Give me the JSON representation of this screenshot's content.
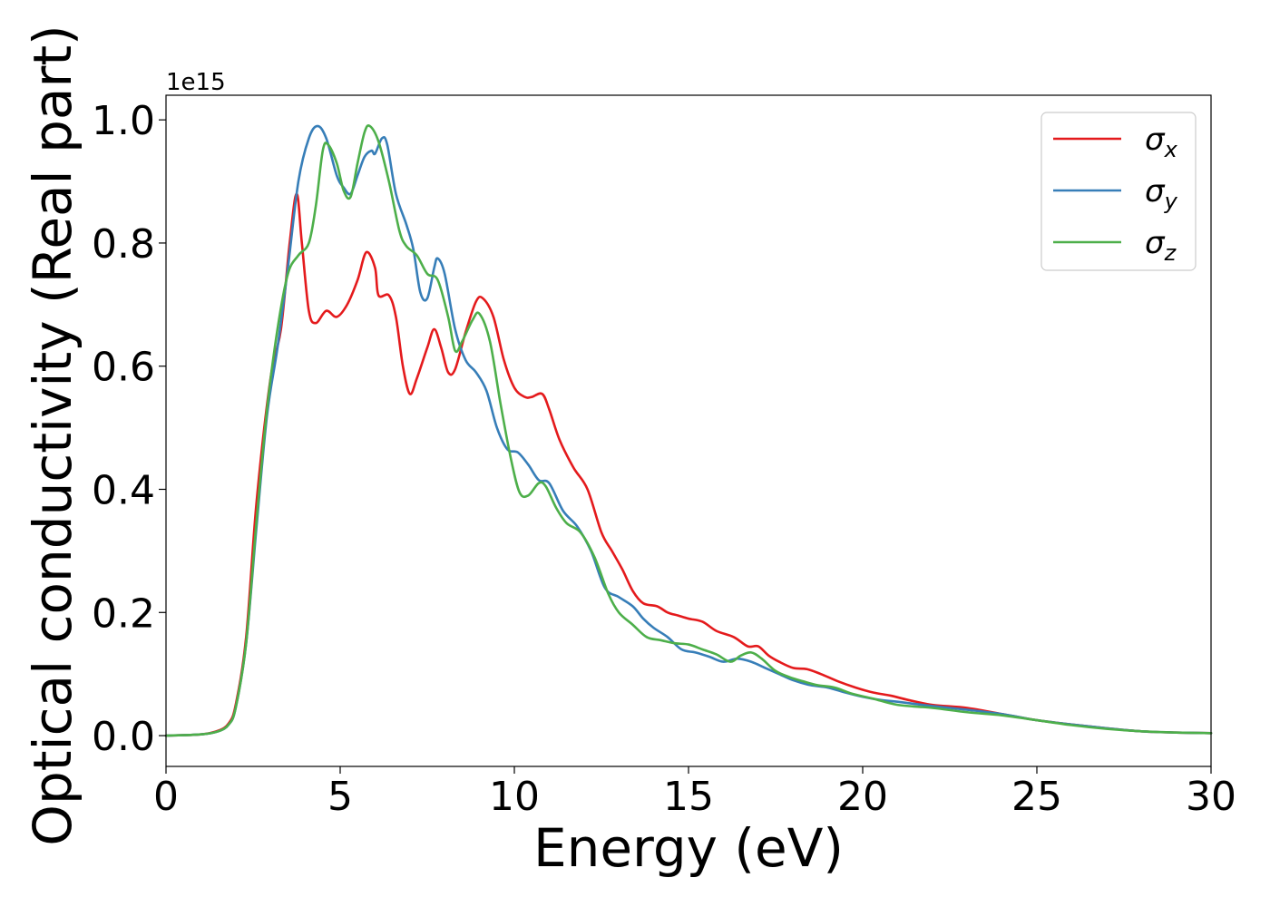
{
  "chart_data": {
    "type": "line",
    "title": "",
    "xlabel": "Energy (eV)",
    "ylabel": "Optical conductivity (Real part)",
    "y_offset_text": "1e15",
    "xlim": [
      0,
      30
    ],
    "ylim": [
      -0.05,
      1.04
    ],
    "xticks": [
      0,
      5,
      10,
      15,
      20,
      25,
      30
    ],
    "xtick_labels": [
      "0",
      "5",
      "10",
      "15",
      "20",
      "25",
      "30"
    ],
    "yticks": [
      0.0,
      0.2,
      0.4,
      0.6,
      0.8,
      1.0
    ],
    "ytick_labels": [
      "0.0",
      "0.2",
      "0.4",
      "0.6",
      "0.8",
      "1.0"
    ],
    "grid": false,
    "legend_position": "top-right",
    "series": [
      {
        "name": "σ",
        "subscript": "x",
        "color": "#e41a1c",
        "points": [
          [
            0,
            0
          ],
          [
            1,
            0.002
          ],
          [
            1.5,
            0.008
          ],
          [
            1.8,
            0.02
          ],
          [
            2.0,
            0.05
          ],
          [
            2.3,
            0.16
          ],
          [
            2.6,
            0.38
          ],
          [
            3.0,
            0.58
          ],
          [
            3.3,
            0.66
          ],
          [
            3.55,
            0.8
          ],
          [
            3.75,
            0.88
          ],
          [
            3.9,
            0.8
          ],
          [
            4.1,
            0.69
          ],
          [
            4.3,
            0.67
          ],
          [
            4.6,
            0.69
          ],
          [
            4.9,
            0.68
          ],
          [
            5.2,
            0.7
          ],
          [
            5.5,
            0.74
          ],
          [
            5.75,
            0.785
          ],
          [
            6.0,
            0.76
          ],
          [
            6.1,
            0.715
          ],
          [
            6.4,
            0.715
          ],
          [
            6.6,
            0.68
          ],
          [
            6.8,
            0.6
          ],
          [
            7.0,
            0.555
          ],
          [
            7.2,
            0.58
          ],
          [
            7.5,
            0.63
          ],
          [
            7.7,
            0.66
          ],
          [
            7.9,
            0.63
          ],
          [
            8.1,
            0.59
          ],
          [
            8.3,
            0.595
          ],
          [
            8.6,
            0.655
          ],
          [
            8.9,
            0.705
          ],
          [
            9.1,
            0.71
          ],
          [
            9.4,
            0.68
          ],
          [
            9.7,
            0.61
          ],
          [
            10.0,
            0.565
          ],
          [
            10.3,
            0.55
          ],
          [
            10.5,
            0.55
          ],
          [
            10.8,
            0.555
          ],
          [
            11.0,
            0.53
          ],
          [
            11.3,
            0.48
          ],
          [
            11.7,
            0.435
          ],
          [
            12.1,
            0.4
          ],
          [
            12.5,
            0.33
          ],
          [
            12.8,
            0.3
          ],
          [
            13.1,
            0.27
          ],
          [
            13.4,
            0.235
          ],
          [
            13.7,
            0.215
          ],
          [
            14.1,
            0.21
          ],
          [
            14.4,
            0.2
          ],
          [
            14.7,
            0.195
          ],
          [
            15.0,
            0.19
          ],
          [
            15.4,
            0.185
          ],
          [
            15.8,
            0.17
          ],
          [
            16.3,
            0.16
          ],
          [
            16.7,
            0.145
          ],
          [
            17.0,
            0.145
          ],
          [
            17.3,
            0.13
          ],
          [
            17.6,
            0.12
          ],
          [
            18.0,
            0.11
          ],
          [
            18.4,
            0.108
          ],
          [
            18.8,
            0.1
          ],
          [
            19.3,
            0.088
          ],
          [
            19.8,
            0.078
          ],
          [
            20.3,
            0.07
          ],
          [
            20.8,
            0.065
          ],
          [
            21.3,
            0.058
          ],
          [
            22.0,
            0.05
          ],
          [
            23.0,
            0.045
          ],
          [
            24.0,
            0.035
          ],
          [
            25.0,
            0.025
          ],
          [
            26.0,
            0.018
          ],
          [
            27.0,
            0.012
          ],
          [
            28.0,
            0.007
          ],
          [
            29.0,
            0.005
          ],
          [
            30.0,
            0.004
          ]
        ]
      },
      {
        "name": "σ",
        "subscript": "y",
        "color": "#377eb8",
        "points": [
          [
            0,
            0
          ],
          [
            1,
            0.002
          ],
          [
            1.5,
            0.007
          ],
          [
            1.8,
            0.018
          ],
          [
            2.0,
            0.045
          ],
          [
            2.3,
            0.15
          ],
          [
            2.6,
            0.34
          ],
          [
            2.9,
            0.52
          ],
          [
            3.2,
            0.63
          ],
          [
            3.5,
            0.76
          ],
          [
            3.8,
            0.9
          ],
          [
            4.1,
            0.97
          ],
          [
            4.35,
            0.99
          ],
          [
            4.6,
            0.97
          ],
          [
            4.9,
            0.91
          ],
          [
            5.1,
            0.89
          ],
          [
            5.3,
            0.88
          ],
          [
            5.5,
            0.91
          ],
          [
            5.7,
            0.94
          ],
          [
            5.9,
            0.95
          ],
          [
            6.0,
            0.945
          ],
          [
            6.2,
            0.97
          ],
          [
            6.35,
            0.96
          ],
          [
            6.6,
            0.88
          ],
          [
            6.9,
            0.83
          ],
          [
            7.1,
            0.79
          ],
          [
            7.3,
            0.72
          ],
          [
            7.5,
            0.71
          ],
          [
            7.7,
            0.76
          ],
          [
            7.8,
            0.775
          ],
          [
            8.0,
            0.75
          ],
          [
            8.3,
            0.66
          ],
          [
            8.6,
            0.61
          ],
          [
            8.9,
            0.59
          ],
          [
            9.2,
            0.56
          ],
          [
            9.5,
            0.5
          ],
          [
            9.8,
            0.465
          ],
          [
            10.1,
            0.46
          ],
          [
            10.4,
            0.44
          ],
          [
            10.7,
            0.415
          ],
          [
            11.0,
            0.41
          ],
          [
            11.4,
            0.365
          ],
          [
            11.8,
            0.34
          ],
          [
            12.2,
            0.3
          ],
          [
            12.6,
            0.24
          ],
          [
            13.0,
            0.225
          ],
          [
            13.4,
            0.21
          ],
          [
            13.7,
            0.19
          ],
          [
            14.0,
            0.175
          ],
          [
            14.4,
            0.16
          ],
          [
            14.8,
            0.14
          ],
          [
            15.2,
            0.135
          ],
          [
            15.6,
            0.128
          ],
          [
            16.0,
            0.12
          ],
          [
            16.4,
            0.125
          ],
          [
            16.8,
            0.12
          ],
          [
            17.2,
            0.11
          ],
          [
            17.6,
            0.1
          ],
          [
            18.0,
            0.09
          ],
          [
            18.5,
            0.082
          ],
          [
            19.0,
            0.078
          ],
          [
            19.5,
            0.07
          ],
          [
            20.0,
            0.063
          ],
          [
            20.5,
            0.058
          ],
          [
            21.0,
            0.055
          ],
          [
            22.0,
            0.048
          ],
          [
            23.0,
            0.042
          ],
          [
            24.0,
            0.035
          ],
          [
            25.0,
            0.025
          ],
          [
            26.0,
            0.018
          ],
          [
            27.0,
            0.012
          ],
          [
            28.0,
            0.007
          ],
          [
            29.0,
            0.005
          ],
          [
            30.0,
            0.004
          ]
        ]
      },
      {
        "name": "σ",
        "subscript": "z",
        "color": "#4daf4a",
        "points": [
          [
            0,
            0
          ],
          [
            1,
            0.002
          ],
          [
            1.5,
            0.007
          ],
          [
            1.8,
            0.018
          ],
          [
            2.0,
            0.045
          ],
          [
            2.3,
            0.15
          ],
          [
            2.6,
            0.35
          ],
          [
            2.9,
            0.53
          ],
          [
            3.2,
            0.66
          ],
          [
            3.5,
            0.75
          ],
          [
            3.8,
            0.78
          ],
          [
            4.1,
            0.8
          ],
          [
            4.3,
            0.86
          ],
          [
            4.5,
            0.95
          ],
          [
            4.65,
            0.96
          ],
          [
            4.9,
            0.93
          ],
          [
            5.1,
            0.885
          ],
          [
            5.3,
            0.875
          ],
          [
            5.5,
            0.93
          ],
          [
            5.7,
            0.98
          ],
          [
            5.85,
            0.99
          ],
          [
            6.1,
            0.965
          ],
          [
            6.4,
            0.9
          ],
          [
            6.7,
            0.82
          ],
          [
            6.9,
            0.795
          ],
          [
            7.2,
            0.78
          ],
          [
            7.5,
            0.75
          ],
          [
            7.8,
            0.74
          ],
          [
            8.1,
            0.68
          ],
          [
            8.3,
            0.625
          ],
          [
            8.5,
            0.64
          ],
          [
            8.8,
            0.675
          ],
          [
            9.0,
            0.685
          ],
          [
            9.3,
            0.64
          ],
          [
            9.6,
            0.54
          ],
          [
            9.9,
            0.45
          ],
          [
            10.15,
            0.395
          ],
          [
            10.4,
            0.39
          ],
          [
            10.7,
            0.41
          ],
          [
            10.9,
            0.405
          ],
          [
            11.2,
            0.37
          ],
          [
            11.5,
            0.345
          ],
          [
            11.9,
            0.33
          ],
          [
            12.3,
            0.29
          ],
          [
            12.7,
            0.23
          ],
          [
            13.0,
            0.2
          ],
          [
            13.4,
            0.18
          ],
          [
            13.8,
            0.16
          ],
          [
            14.2,
            0.155
          ],
          [
            14.6,
            0.15
          ],
          [
            15.0,
            0.148
          ],
          [
            15.4,
            0.14
          ],
          [
            15.8,
            0.132
          ],
          [
            16.2,
            0.12
          ],
          [
            16.5,
            0.13
          ],
          [
            16.8,
            0.135
          ],
          [
            17.1,
            0.125
          ],
          [
            17.5,
            0.105
          ],
          [
            17.9,
            0.095
          ],
          [
            18.3,
            0.088
          ],
          [
            18.7,
            0.082
          ],
          [
            19.2,
            0.078
          ],
          [
            19.7,
            0.068
          ],
          [
            20.3,
            0.06
          ],
          [
            21.0,
            0.05
          ],
          [
            22.0,
            0.045
          ],
          [
            23.0,
            0.038
          ],
          [
            24.0,
            0.033
          ],
          [
            25.0,
            0.025
          ],
          [
            26.0,
            0.017
          ],
          [
            27.0,
            0.011
          ],
          [
            28.0,
            0.007
          ],
          [
            29.0,
            0.005
          ],
          [
            30.0,
            0.004
          ]
        ]
      }
    ]
  }
}
